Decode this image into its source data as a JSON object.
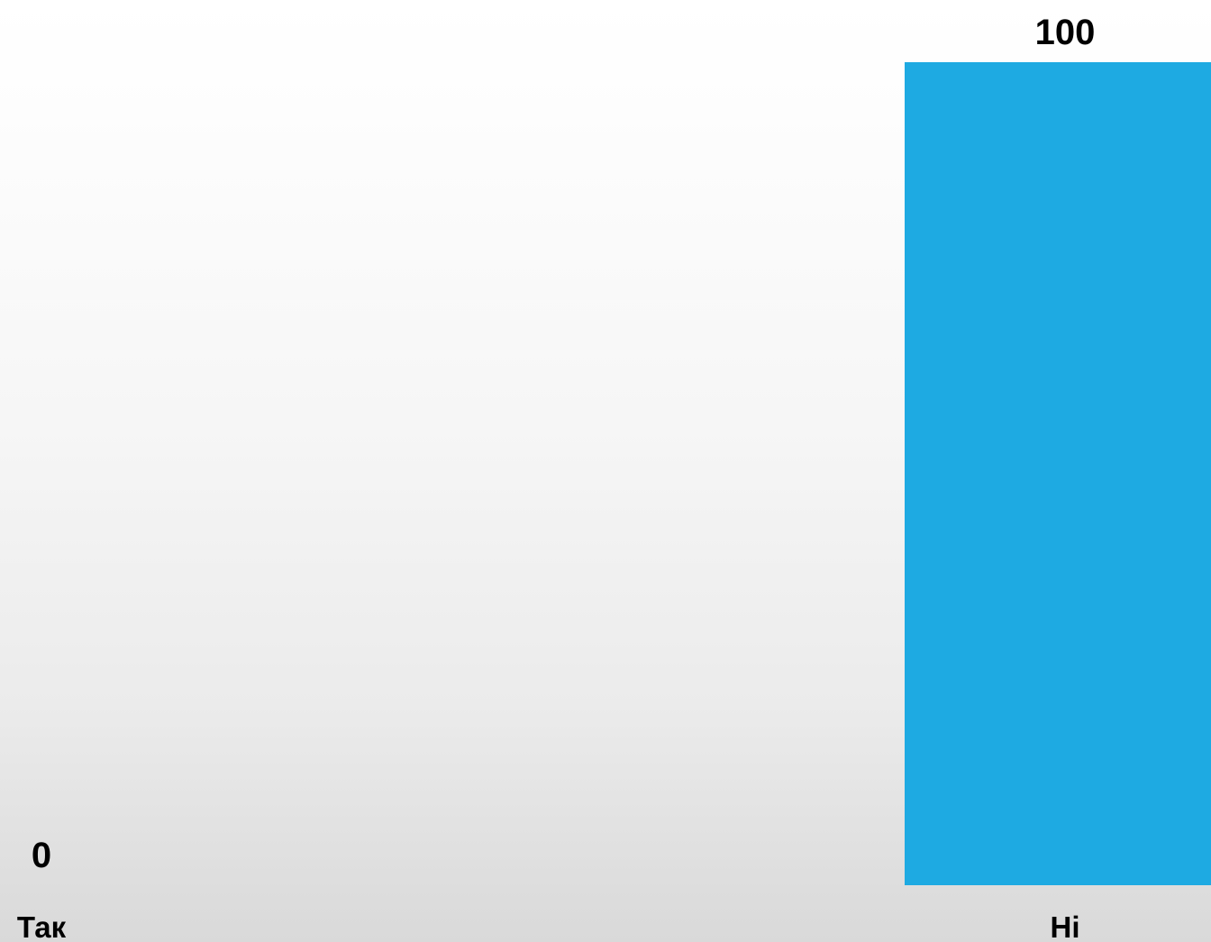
{
  "chart_data": {
    "type": "bar",
    "categories": [
      "Так",
      "Ні"
    ],
    "values": [
      0,
      100
    ],
    "data_labels": [
      "0",
      "100"
    ],
    "ylim": [
      0,
      100
    ],
    "title": "",
    "xlabel": "",
    "ylabel": "",
    "grid": false,
    "legend": "none",
    "bar_color": "#1eaae2"
  }
}
